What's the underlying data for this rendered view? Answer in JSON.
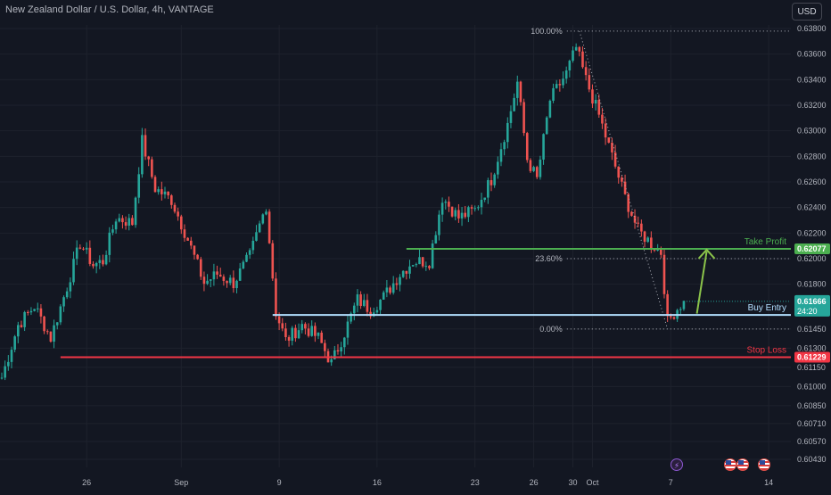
{
  "header": {
    "title": "New Zealand Dollar / U.S. Dollar, 4h, VANTAGE",
    "currency_button": "USD"
  },
  "chart_data": {
    "type": "candlestick",
    "instrument": "New Zealand Dollar / U.S. Dollar",
    "timeframe": "4h",
    "broker": "VANTAGE",
    "ylim": [
      0.6037,
      0.6386
    ],
    "y_ticks": [
      0.638,
      0.636,
      0.634,
      0.632,
      0.63,
      0.628,
      0.626,
      0.624,
      0.622,
      0.62,
      0.618,
      0.6145,
      0.613,
      0.6115,
      0.61,
      0.6085,
      0.6071,
      0.6057,
      0.6043
    ],
    "y_tick_labels": [
      "0.63800",
      "0.63600",
      "0.63400",
      "0.63200",
      "0.63000",
      "0.62800",
      "0.62600",
      "0.62400",
      "0.62200",
      "0.62000",
      "0.61800",
      "0.61450",
      "0.61300",
      "0.61150",
      "0.61000",
      "0.60850",
      "0.60710",
      "0.60570",
      "0.60430"
    ],
    "x_tick_labels": [
      {
        "label": "26",
        "bar": 26
      },
      {
        "label": "Sep",
        "bar": 55
      },
      {
        "label": "9",
        "bar": 85
      },
      {
        "label": "16",
        "bar": 115
      },
      {
        "label": "23",
        "bar": 145
      },
      {
        "label": "26",
        "bar": 163
      },
      {
        "label": "30",
        "bar": 175
      },
      {
        "label": "Oct",
        "bar": 181
      },
      {
        "label": "7",
        "bar": 205
      },
      {
        "label": "14",
        "bar": 235
      }
    ],
    "bar_count": 240,
    "path_points": [
      [
        0,
        0.6107
      ],
      [
        5,
        0.6148
      ],
      [
        10,
        0.6163
      ],
      [
        15,
        0.6138
      ],
      [
        20,
        0.6178
      ],
      [
        24,
        0.6212
      ],
      [
        28,
        0.6195
      ],
      [
        31,
        0.6198
      ],
      [
        35,
        0.6232
      ],
      [
        40,
        0.6228
      ],
      [
        43,
        0.6292
      ],
      [
        47,
        0.6255
      ],
      [
        52,
        0.6246
      ],
      [
        57,
        0.6215
      ],
      [
        62,
        0.6181
      ],
      [
        66,
        0.6188
      ],
      [
        71,
        0.6181
      ],
      [
        76,
        0.6202
      ],
      [
        81,
        0.6242
      ],
      [
        84,
        0.6158
      ],
      [
        87,
        0.6136
      ],
      [
        92,
        0.6148
      ],
      [
        97,
        0.6138
      ],
      [
        101,
        0.6118
      ],
      [
        105,
        0.6142
      ],
      [
        109,
        0.6168
      ],
      [
        113,
        0.616
      ],
      [
        117,
        0.617
      ],
      [
        122,
        0.6188
      ],
      [
        126,
        0.6198
      ],
      [
        131,
        0.6198
      ],
      [
        135,
        0.6248
      ],
      [
        140,
        0.6232
      ],
      [
        145,
        0.6238
      ],
      [
        150,
        0.6262
      ],
      [
        155,
        0.6305
      ],
      [
        158,
        0.6338
      ],
      [
        161,
        0.6278
      ],
      [
        164,
        0.6262
      ],
      [
        168,
        0.6324
      ],
      [
        173,
        0.6345
      ],
      [
        176,
        0.6365
      ],
      [
        179,
        0.634
      ],
      [
        183,
        0.6312
      ],
      [
        187,
        0.628
      ],
      [
        191,
        0.6248
      ],
      [
        195,
        0.6222
      ],
      [
        199,
        0.6212
      ],
      [
        202,
        0.6205
      ],
      [
        204,
        0.615
      ],
      [
        206,
        0.6158
      ],
      [
        209,
        0.6167
      ]
    ],
    "fibonacci": {
      "levels": [
        {
          "label": "100.00%",
          "price": 0.6378
        },
        {
          "label": "23.60%",
          "price": 0.62
        },
        {
          "label": "0.00%",
          "price": 0.6145
        }
      ]
    },
    "horizontal_lines": [
      {
        "name": "Take Profit",
        "price": 0.62077,
        "color": "#4caf50",
        "price_label": "0.62077"
      },
      {
        "name": "Buy Entry",
        "price": 0.6156,
        "color": "#b2dfff",
        "price_label": ""
      },
      {
        "name": "Stop Loss",
        "price": 0.61229,
        "color": "#f23645",
        "price_label": "0.61229"
      }
    ],
    "current_price": {
      "value": "0.61666",
      "countdown": "24:20",
      "price": 0.61666
    },
    "projection_arrow": {
      "from_price": 0.6157,
      "to_price": 0.6207
    },
    "colors": {
      "up": "#26a69a",
      "down": "#ef5350",
      "background": "#131722",
      "grid": "#1e222d",
      "axis_text": "#b2b5be"
    }
  }
}
